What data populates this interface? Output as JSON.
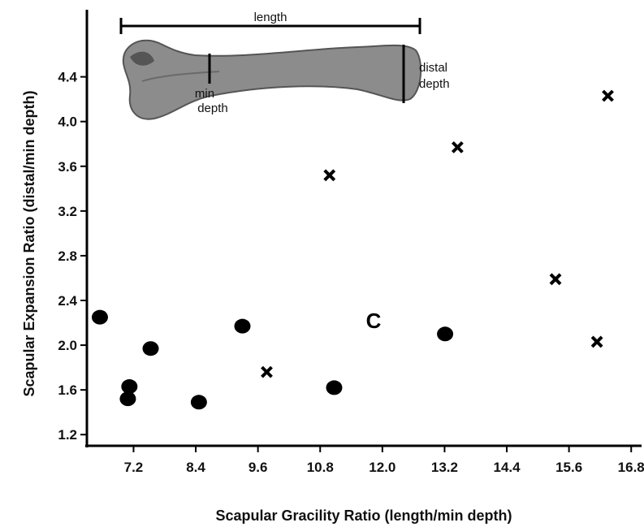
{
  "chart_data": {
    "type": "scatter",
    "x_label": "Scapular Gracility Ratio (length/min depth)",
    "y_label": "Scapular Expansion Ratio (distal/min depth)",
    "annotations": {
      "length": "length",
      "min_depth": [
        "min",
        "depth"
      ],
      "distal_depth": [
        "distal",
        "depth"
      ]
    },
    "xlim": [
      6.3,
      17.0
    ],
    "ylim": [
      1.1,
      5.0
    ],
    "xticks": [
      7.2,
      8.4,
      9.6,
      {
        "value": 10.8,
        "label": "10.8"
      },
      {
        "value": 12.0,
        "label": "12.0"
      },
      13.2,
      14.4,
      15.6,
      16.8
    ],
    "yticks": [
      1.2,
      1.6,
      {
        "value": 2.0,
        "label": "2.0"
      },
      2.4,
      2.8,
      3.2,
      3.6,
      {
        "value": 4.0,
        "label": "4.0"
      },
      4.4
    ],
    "series": [
      {
        "marker": "circle",
        "color": "#000000",
        "x": [
          6.55,
          7.12,
          7.09,
          7.53,
          8.46,
          9.3,
          11.07,
          13.21
        ],
        "values": [
          2.25,
          1.63,
          1.52,
          1.97,
          1.49,
          2.17,
          1.62,
          2.1
        ]
      },
      {
        "marker": "x",
        "color": "#000000",
        "x": [
          9.77,
          10.98,
          13.45,
          15.34,
          16.14,
          16.35
        ],
        "values": [
          1.76,
          3.52,
          3.77,
          2.59,
          2.03,
          4.23
        ]
      },
      {
        "marker": "C",
        "color": "#000000",
        "x": [
          11.83
        ],
        "values": [
          2.22
        ]
      }
    ]
  }
}
